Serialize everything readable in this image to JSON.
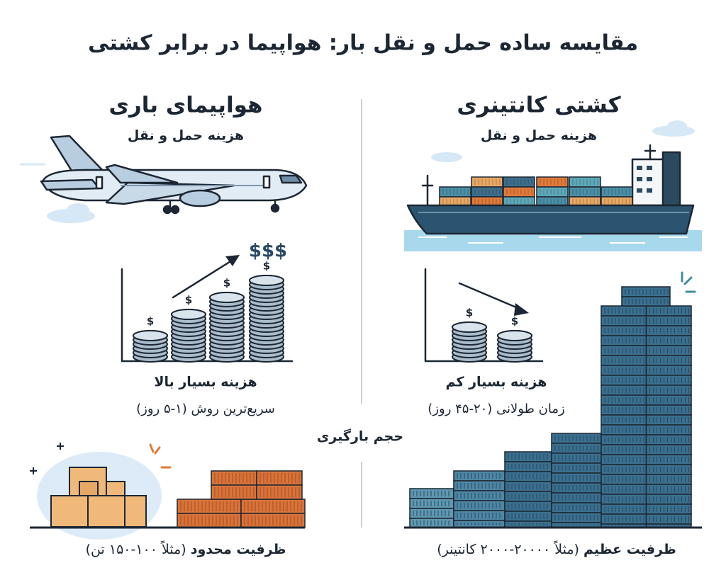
{
  "header": {
    "title": "مقایسه ساده حمل و نقل بار: هواپیما در برابر کشتی"
  },
  "plane": {
    "title": "هواپیمای باری",
    "subtitle": "هزینه حمل و نقل",
    "price_sign": "$$$",
    "cost": "هزینه بسیار بالا",
    "speed": "سریع‌ترین روش (۱-۵ روز)",
    "capacity_label": "ظرفیت محدود",
    "capacity_note": "(مثلاً ۱۰۰-۱۵۰ تن)"
  },
  "ship": {
    "title": "کشتی کانتینری",
    "subtitle": "هزینه حمل و نقل",
    "cost": "هزینه بسیار کم",
    "speed": "زمان طولانی (۲۰-۴۵ روز)",
    "capacity_label": "ظرفیت عظیم",
    "capacity_note": "(مثلاً ۲۰۰۰۰-۲۰۰۰ کانتینر)"
  },
  "center_label": "حجم بارگیری",
  "coin_symbol": "$"
}
